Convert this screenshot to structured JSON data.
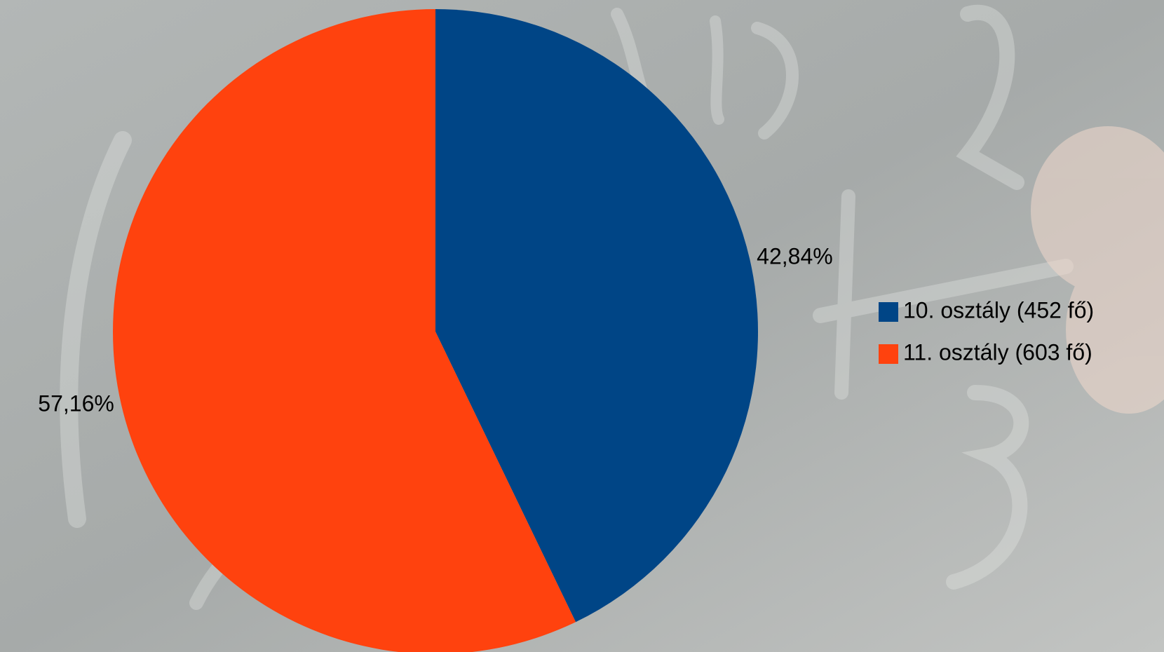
{
  "chart_data": {
    "type": "pie",
    "categories": [
      "10. osztály (452 fő)",
      "11. osztály (603 fő)"
    ],
    "values": [
      42.84,
      57.16
    ],
    "value_labels": [
      "42,84%",
      "57,16%"
    ],
    "colors": [
      "#004586",
      "#ff420e"
    ],
    "legend": "right"
  }
}
